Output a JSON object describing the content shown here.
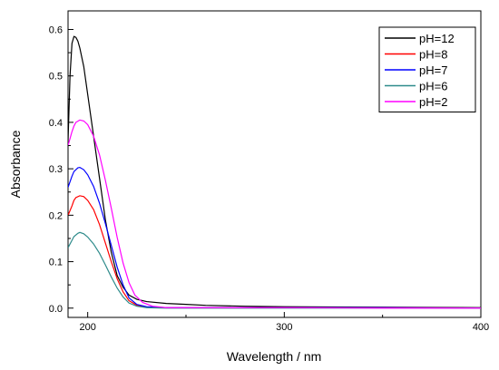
{
  "chart_data": {
    "type": "line",
    "xlabel": "Wavelength / nm",
    "ylabel": "Absorbance",
    "xlim": [
      190,
      400
    ],
    "ylim": [
      -0.02,
      0.64
    ],
    "x_ticks": [
      200,
      300,
      400
    ],
    "y_ticks": [
      0.0,
      0.1,
      0.2,
      0.3,
      0.4,
      0.5,
      0.6
    ],
    "grid": false,
    "legend_position": "top-right",
    "series": [
      {
        "name": "pH=12",
        "color": "#000000",
        "points": [
          [
            190,
            0.36
          ],
          [
            191,
            0.5
          ],
          [
            192,
            0.57
          ],
          [
            193,
            0.585
          ],
          [
            194,
            0.583
          ],
          [
            195,
            0.575
          ],
          [
            196,
            0.56
          ],
          [
            198,
            0.52
          ],
          [
            200,
            0.46
          ],
          [
            203,
            0.37
          ],
          [
            206,
            0.28
          ],
          [
            209,
            0.19
          ],
          [
            212,
            0.12
          ],
          [
            215,
            0.07
          ],
          [
            218,
            0.045
          ],
          [
            221,
            0.028
          ],
          [
            225,
            0.019
          ],
          [
            230,
            0.014
          ],
          [
            240,
            0.01
          ],
          [
            250,
            0.008
          ],
          [
            260,
            0.006
          ],
          [
            280,
            0.004
          ],
          [
            300,
            0.003
          ],
          [
            350,
            0.002
          ],
          [
            400,
            0.001
          ]
        ]
      },
      {
        "name": "pH=8",
        "color": "#ff0000",
        "points": [
          [
            190,
            0.2
          ],
          [
            191,
            0.21
          ],
          [
            192,
            0.22
          ],
          [
            193,
            0.232
          ],
          [
            194,
            0.238
          ],
          [
            196,
            0.242
          ],
          [
            198,
            0.24
          ],
          [
            200,
            0.232
          ],
          [
            203,
            0.212
          ],
          [
            206,
            0.18
          ],
          [
            209,
            0.14
          ],
          [
            212,
            0.1
          ],
          [
            215,
            0.063
          ],
          [
            218,
            0.035
          ],
          [
            221,
            0.016
          ],
          [
            225,
            0.006
          ],
          [
            230,
            0.002
          ],
          [
            240,
            0.001
          ],
          [
            260,
            0.001
          ],
          [
            300,
            0.001
          ],
          [
            350,
            0.001
          ],
          [
            400,
            0.0
          ]
        ]
      },
      {
        "name": "pH=7",
        "color": "#0000ff",
        "points": [
          [
            190,
            0.26
          ],
          [
            191,
            0.272
          ],
          [
            192,
            0.284
          ],
          [
            193,
            0.294
          ],
          [
            195,
            0.302
          ],
          [
            196,
            0.303
          ],
          [
            198,
            0.298
          ],
          [
            200,
            0.287
          ],
          [
            203,
            0.262
          ],
          [
            206,
            0.226
          ],
          [
            209,
            0.182
          ],
          [
            212,
            0.135
          ],
          [
            215,
            0.088
          ],
          [
            218,
            0.05
          ],
          [
            221,
            0.022
          ],
          [
            225,
            0.008
          ],
          [
            230,
            0.003
          ],
          [
            240,
            0.001
          ],
          [
            260,
            0.001
          ],
          [
            300,
            0.001
          ],
          [
            350,
            0.001
          ],
          [
            400,
            0.0
          ]
        ]
      },
      {
        "name": "pH=6",
        "color": "#2e8b8b",
        "points": [
          [
            190,
            0.13
          ],
          [
            191,
            0.138
          ],
          [
            192,
            0.146
          ],
          [
            193,
            0.154
          ],
          [
            195,
            0.161
          ],
          [
            196,
            0.163
          ],
          [
            198,
            0.16
          ],
          [
            200,
            0.153
          ],
          [
            203,
            0.138
          ],
          [
            206,
            0.118
          ],
          [
            209,
            0.093
          ],
          [
            212,
            0.067
          ],
          [
            215,
            0.043
          ],
          [
            218,
            0.024
          ],
          [
            221,
            0.011
          ],
          [
            225,
            0.004
          ],
          [
            230,
            0.001
          ],
          [
            240,
            0.0
          ],
          [
            260,
            0.0
          ],
          [
            300,
            0.0
          ],
          [
            350,
            0.0
          ],
          [
            400,
            0.0
          ]
        ]
      },
      {
        "name": "pH=2",
        "color": "#ff00ff",
        "points": [
          [
            190,
            0.35
          ],
          [
            191,
            0.365
          ],
          [
            192,
            0.38
          ],
          [
            193,
            0.392
          ],
          [
            194,
            0.4
          ],
          [
            196,
            0.405
          ],
          [
            198,
            0.403
          ],
          [
            200,
            0.395
          ],
          [
            203,
            0.37
          ],
          [
            206,
            0.33
          ],
          [
            209,
            0.275
          ],
          [
            212,
            0.215
          ],
          [
            215,
            0.152
          ],
          [
            218,
            0.097
          ],
          [
            221,
            0.055
          ],
          [
            224,
            0.028
          ],
          [
            228,
            0.012
          ],
          [
            233,
            0.004
          ],
          [
            240,
            0.001
          ],
          [
            260,
            0.001
          ],
          [
            300,
            0.001
          ],
          [
            350,
            0.0
          ],
          [
            400,
            0.0
          ]
        ]
      }
    ]
  }
}
